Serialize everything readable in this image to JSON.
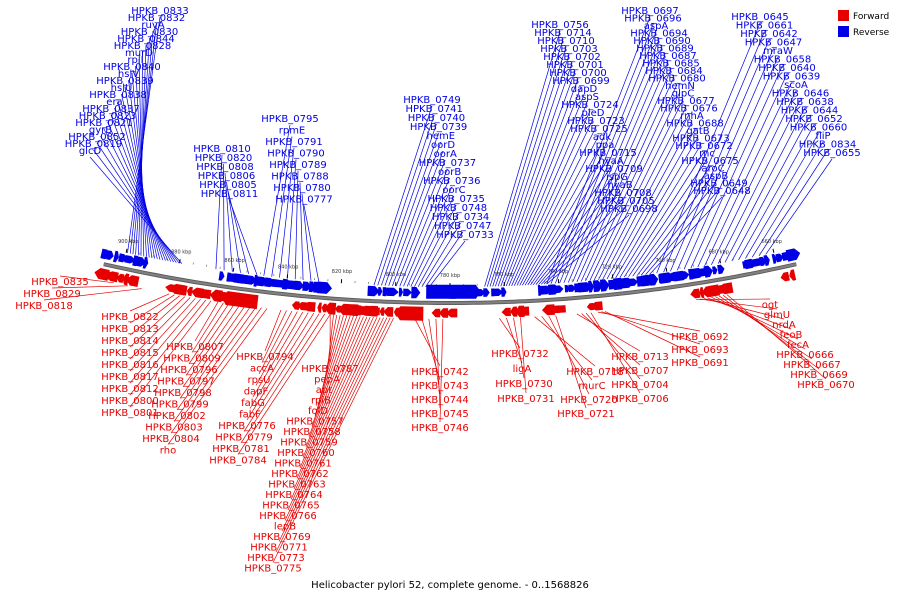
{
  "caption": "Helicobacter pylori 52, complete genome. - 0..1568826",
  "legend": [
    {
      "label": "Forward",
      "color": "#e60000"
    },
    {
      "label": "Reverse",
      "color": "#0000e6"
    }
  ],
  "backbone_color": "#808080",
  "ticks": [
    "900 kbp",
    "880 kbp",
    "860 kbp",
    "840 kbp",
    "820 kbp",
    "800 kbp",
    "780 kbp",
    "760 kbp",
    "740 kbp",
    "720 kbp",
    "700 kbp",
    "680 kbp",
    "660 kbp"
  ],
  "genes": {
    "reverse": [
      "HPKB_0833",
      "HPKB_0832",
      "ruvA",
      "HPKB_0830",
      "HPKB_0844",
      "HPKB_0828",
      "murD",
      "rplI",
      "HPKB_0840",
      "hslV",
      "HPKB_0839",
      "hslU",
      "HPKB_0838",
      "era",
      "HPKB_0837",
      "HPKB_0823",
      "HPKB_0821",
      "gyrB",
      "HPKB_0852",
      "HPKB_0819",
      "glcD",
      "HPKB_0810",
      "HPKB_0820",
      "HPKB_0808",
      "HPKB_0806",
      "HPKB_0805",
      "HPKB_0811",
      "HPKB_0795",
      "rpmE",
      "HPKB_0791",
      "HPKB_0790",
      "HPKB_0789",
      "HPKB_0788",
      "HPKB_0780",
      "HPKB_0777",
      "HPKB_0749",
      "HPKB_0741",
      "HPKB_0740",
      "HPKB_0739",
      "hemE",
      "oorD",
      "oorA",
      "HPKB_0737",
      "oorB",
      "HPKB_0736",
      "oorC",
      "HPKB_0735",
      "HPKB_0748",
      "HPKB_0734",
      "HPKB_0747",
      "HPKB_0733",
      "HPKB_0756",
      "HPKB_0714",
      "HPKB_0710",
      "HPKB_0703",
      "HPKB_0702",
      "HPKB_0701",
      "HPKB_0700",
      "HPKB_0699",
      "dapD",
      "aspS",
      "HPKB_0724",
      "pleD",
      "HPKB_0723",
      "HPKB_0725",
      "adk",
      "ppa",
      "HPKB_0715",
      "hyaA",
      "HPKB_0709",
      "ispG",
      "hyaB",
      "HPKB_0708",
      "HPKB_0705",
      "HPKB_0698",
      "HPKB_0697",
      "HPKB_0696",
      "aspA",
      "HPKB_0694",
      "HPKB_0690",
      "HPKB_0689",
      "HPKB_0687",
      "HPKB_0685",
      "HPKB_0684",
      "HPKB_0680",
      "hemN",
      "glpC",
      "HPKB_0677",
      "HPKB_0676",
      "rnhA",
      "HPKB_0688",
      "gatB",
      "HPKB_0673",
      "HPKB_0672",
      "rnc",
      "HPKB_0675",
      "aroC",
      "aspB",
      "HPKB_0649",
      "HPKB_0648",
      "HPKB_0645",
      "HPKB_0661",
      "HPKB_0642",
      "HPKB_0647",
      "mraW",
      "HPKB_0658",
      "HPKB_0640",
      "HPKB_0639",
      "scoA",
      "HPKB_0646",
      "HPKB_0638",
      "HPKB_0644",
      "HPKB_0652",
      "HPKB_0660",
      "fliP",
      "HPKB_0834",
      "HPKB_0655",
      "HPKB_0657",
      "HPKB_0659"
    ],
    "forward": [
      "HPKB_0835",
      "HPKB_0829",
      "HPKB_0818",
      "HPKB_0822",
      "HPKB_0813",
      "HPKB_0814",
      "HPKB_0815",
      "HPKB_0816",
      "HPKB_0817",
      "HPKB_0812",
      "HPKB_0800",
      "HPKB_0801",
      "HPKB_0807",
      "HPKB_0809",
      "HPKB_0796",
      "HPKB_0797",
      "HPKB_0798",
      "HPKB_0799",
      "HPKB_0802",
      "HPKB_0803",
      "HPKB_0804",
      "rho",
      "HPKB_0794",
      "accA",
      "rpsU",
      "dapF",
      "fabG",
      "fabF",
      "HPKB_0776",
      "HPKB_0779",
      "HPKB_0781",
      "HPKB_0784",
      "HPKB_0787",
      "pepA",
      "apt",
      "rpiB",
      "folD",
      "HPKB_0757",
      "HPKB_0758",
      "HPKB_0759",
      "HPKB_0760",
      "HPKB_0761",
      "HPKB_0762",
      "HPKB_0763",
      "HPKB_0764",
      "HPKB_0765",
      "HPKB_0766",
      "lepB",
      "HPKB_0769",
      "HPKB_0771",
      "HPKB_0773",
      "HPKB_0775",
      "HPKB_0742",
      "HPKB_0743",
      "HPKB_0744",
      "HPKB_0745",
      "HPKB_0746",
      "HPKB_0732",
      "ligA",
      "HPKB_0730",
      "HPKB_0731",
      "HPKB_0718",
      "murC",
      "HPKB_0720",
      "HPKB_0721",
      "HPKB_0713",
      "HPKB_0707",
      "HPKB_0704",
      "HPKB_0706",
      "HPKB_0692",
      "HPKB_0693",
      "HPKB_0691",
      "ogt",
      "glmU",
      "nrdA",
      "feoB",
      "fecA",
      "HPKB_0666",
      "HPKB_0667",
      "HPKB_0669",
      "HPKB_0670"
    ]
  }
}
